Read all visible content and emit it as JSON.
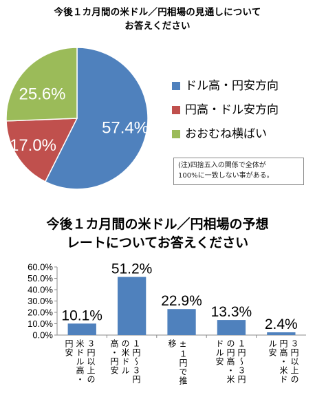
{
  "chart_data": [
    {
      "type": "pie",
      "title_lines": [
        "今後１カ月間の米ドル／円相場の見通しについて",
        "お答えください"
      ],
      "slices": [
        {
          "label": "ドル高・円安方向",
          "value": 57.4,
          "value_label": "57.4%",
          "color": "#4f81bd"
        },
        {
          "label": "円高・ドル安方向",
          "value": 17.0,
          "value_label": "17.0%",
          "color": "#c0504d"
        },
        {
          "label": "おおむね横ばい",
          "value": 25.6,
          "value_label": "25.6%",
          "color": "#9bbb59"
        }
      ],
      "legend_position": "right",
      "note_lines": [
        "(注)四捨五入の関係で全体が",
        "100%に一致しない事がある。"
      ]
    },
    {
      "type": "bar",
      "title_lines": [
        "今後１カ月間の米ドル／円相場の予想",
        "レートについてお答えください"
      ],
      "categories": [
        "３円以上の\n米ドル高・\n円安",
        "１円～３円\nの米ドル\n高・円安",
        "±１円で推\n移",
        "１円～３円\nの円高・米\nドル安",
        "３円以上の\n円高・米ド\nル安"
      ],
      "values": [
        10.1,
        51.2,
        22.9,
        13.3,
        2.4
      ],
      "value_labels": [
        "10.1%",
        "51.2%",
        "22.9%",
        "13.3%",
        "2.4%"
      ],
      "yticks": [
        "0.0%",
        "10.0%",
        "20.0%",
        "30.0%",
        "40.0%",
        "50.0%",
        "60.0%"
      ],
      "ylim": [
        0,
        60
      ],
      "bar_color": "#4f81bd",
      "grid": false
    }
  ]
}
